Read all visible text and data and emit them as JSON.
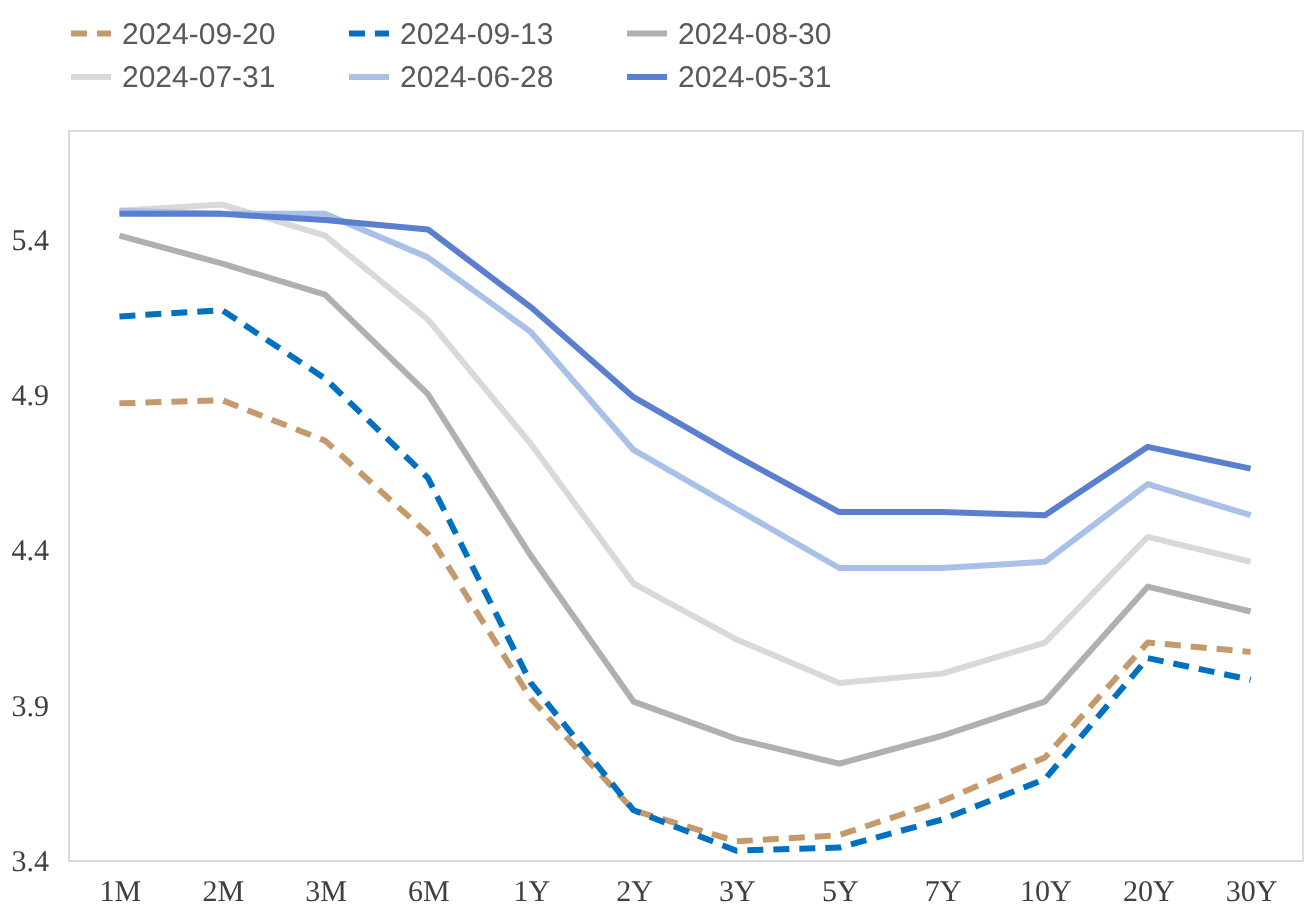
{
  "chart_data": {
    "type": "line",
    "categories": [
      "1M",
      "2M",
      "3M",
      "6M",
      "1Y",
      "2Y",
      "3Y",
      "5Y",
      "7Y",
      "10Y",
      "20Y",
      "30Y"
    ],
    "series": [
      {
        "name": "2024-09-20",
        "color": "#c49a6c",
        "line_style": "dashed",
        "values": [
          4.87,
          4.88,
          4.75,
          4.45,
          3.92,
          3.56,
          3.46,
          3.48,
          3.59,
          3.73,
          4.1,
          4.07
        ]
      },
      {
        "name": "2024-09-13",
        "color": "#0070c0",
        "line_style": "dashed",
        "values": [
          5.15,
          5.17,
          4.95,
          4.63,
          3.97,
          3.56,
          3.43,
          3.44,
          3.53,
          3.66,
          4.05,
          3.98
        ]
      },
      {
        "name": "2024-08-30",
        "color": "#b0b0b0",
        "line_style": "solid",
        "values": [
          5.41,
          5.32,
          5.22,
          4.9,
          4.38,
          3.91,
          3.79,
          3.71,
          3.8,
          3.91,
          4.28,
          4.2
        ]
      },
      {
        "name": "2024-07-31",
        "color": "#d9d9d9",
        "line_style": "solid",
        "values": [
          5.49,
          5.51,
          5.41,
          5.14,
          4.74,
          4.29,
          4.11,
          3.97,
          4.0,
          4.1,
          4.44,
          4.36
        ]
      },
      {
        "name": "2024-06-28",
        "color": "#a9c0e8",
        "line_style": "solid",
        "values": [
          5.49,
          5.48,
          5.48,
          5.34,
          5.1,
          4.72,
          4.53,
          4.34,
          4.34,
          4.36,
          4.61,
          4.51
        ]
      },
      {
        "name": "2024-05-31",
        "color": "#5b7fcf",
        "line_style": "solid",
        "values": [
          5.48,
          5.48,
          5.46,
          5.43,
          5.18,
          4.89,
          4.7,
          4.52,
          4.52,
          4.51,
          4.73,
          4.66
        ]
      }
    ],
    "ylim": [
      3.4,
      5.75
    ],
    "yticks": [
      3.4,
      3.9,
      4.4,
      4.9,
      5.4
    ],
    "grid": false,
    "legend": "top",
    "marker": "none"
  }
}
